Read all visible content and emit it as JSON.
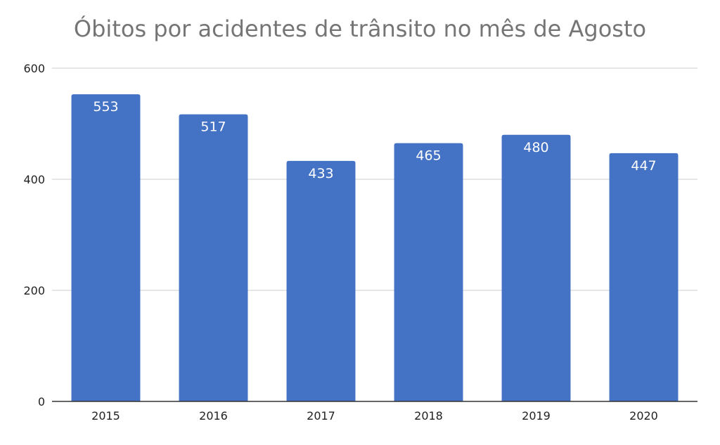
{
  "chart_data": {
    "type": "bar",
    "title": "Óbitos por acidentes de trânsito no mês de Agosto",
    "xlabel": "",
    "ylabel": "",
    "categories": [
      "2015",
      "2016",
      "2017",
      "2018",
      "2019",
      "2020"
    ],
    "values": [
      553,
      517,
      433,
      465,
      480,
      447
    ],
    "ylim": [
      0,
      600
    ],
    "yticks": [
      0,
      200,
      400,
      600
    ],
    "grid": true,
    "legend": "none",
    "data_labels": true
  },
  "colors": {
    "bar": "#4472c4",
    "grid": "#cccccc",
    "axis": "#333333",
    "title": "#757575"
  }
}
